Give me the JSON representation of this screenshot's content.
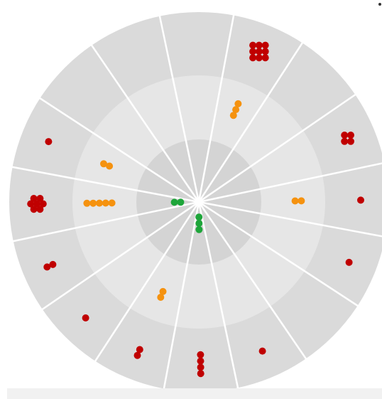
{
  "chart_data": {
    "type": "radial-dot-plot",
    "title": "",
    "sector_count": 16,
    "rings": [
      {
        "name": "inner",
        "color": "#d4d4d4"
      },
      {
        "name": "middle",
        "color": "#e6e6e6"
      },
      {
        "name": "outer",
        "color": "#dadada"
      }
    ],
    "colors": {
      "red": "#c00000",
      "orange": "#f5920f",
      "green": "#1ea53a",
      "separator": "#ffffff"
    },
    "sectors": [
      {
        "index": 0,
        "red": 9,
        "orange": 3,
        "green": 0
      },
      {
        "index": 1,
        "red": 0,
        "orange": 0,
        "green": 0
      },
      {
        "index": 2,
        "red": 4,
        "orange": 0,
        "green": 0
      },
      {
        "index": 3,
        "red": 1,
        "orange": 2,
        "green": 0
      },
      {
        "index": 4,
        "red": 1,
        "orange": 0,
        "green": 0
      },
      {
        "index": 5,
        "red": 0,
        "orange": 0,
        "green": 0
      },
      {
        "index": 6,
        "red": 1,
        "orange": 0,
        "green": 0
      },
      {
        "index": 7,
        "red": 4,
        "orange": 0,
        "green": 3
      },
      {
        "index": 8,
        "red": 2,
        "orange": 2,
        "green": 0
      },
      {
        "index": 9,
        "red": 1,
        "orange": 0,
        "green": 0
      },
      {
        "index": 10,
        "red": 2,
        "orange": 0,
        "green": 0
      },
      {
        "index": 11,
        "red": 7,
        "orange": 5,
        "green": 2
      },
      {
        "index": 12,
        "red": 1,
        "orange": 2,
        "green": 0
      },
      {
        "index": 13,
        "red": 0,
        "orange": 0,
        "green": 0
      },
      {
        "index": 14,
        "red": 0,
        "orange": 0,
        "green": 0
      },
      {
        "index": 15,
        "red": 0,
        "orange": 0,
        "green": 0
      }
    ]
  }
}
